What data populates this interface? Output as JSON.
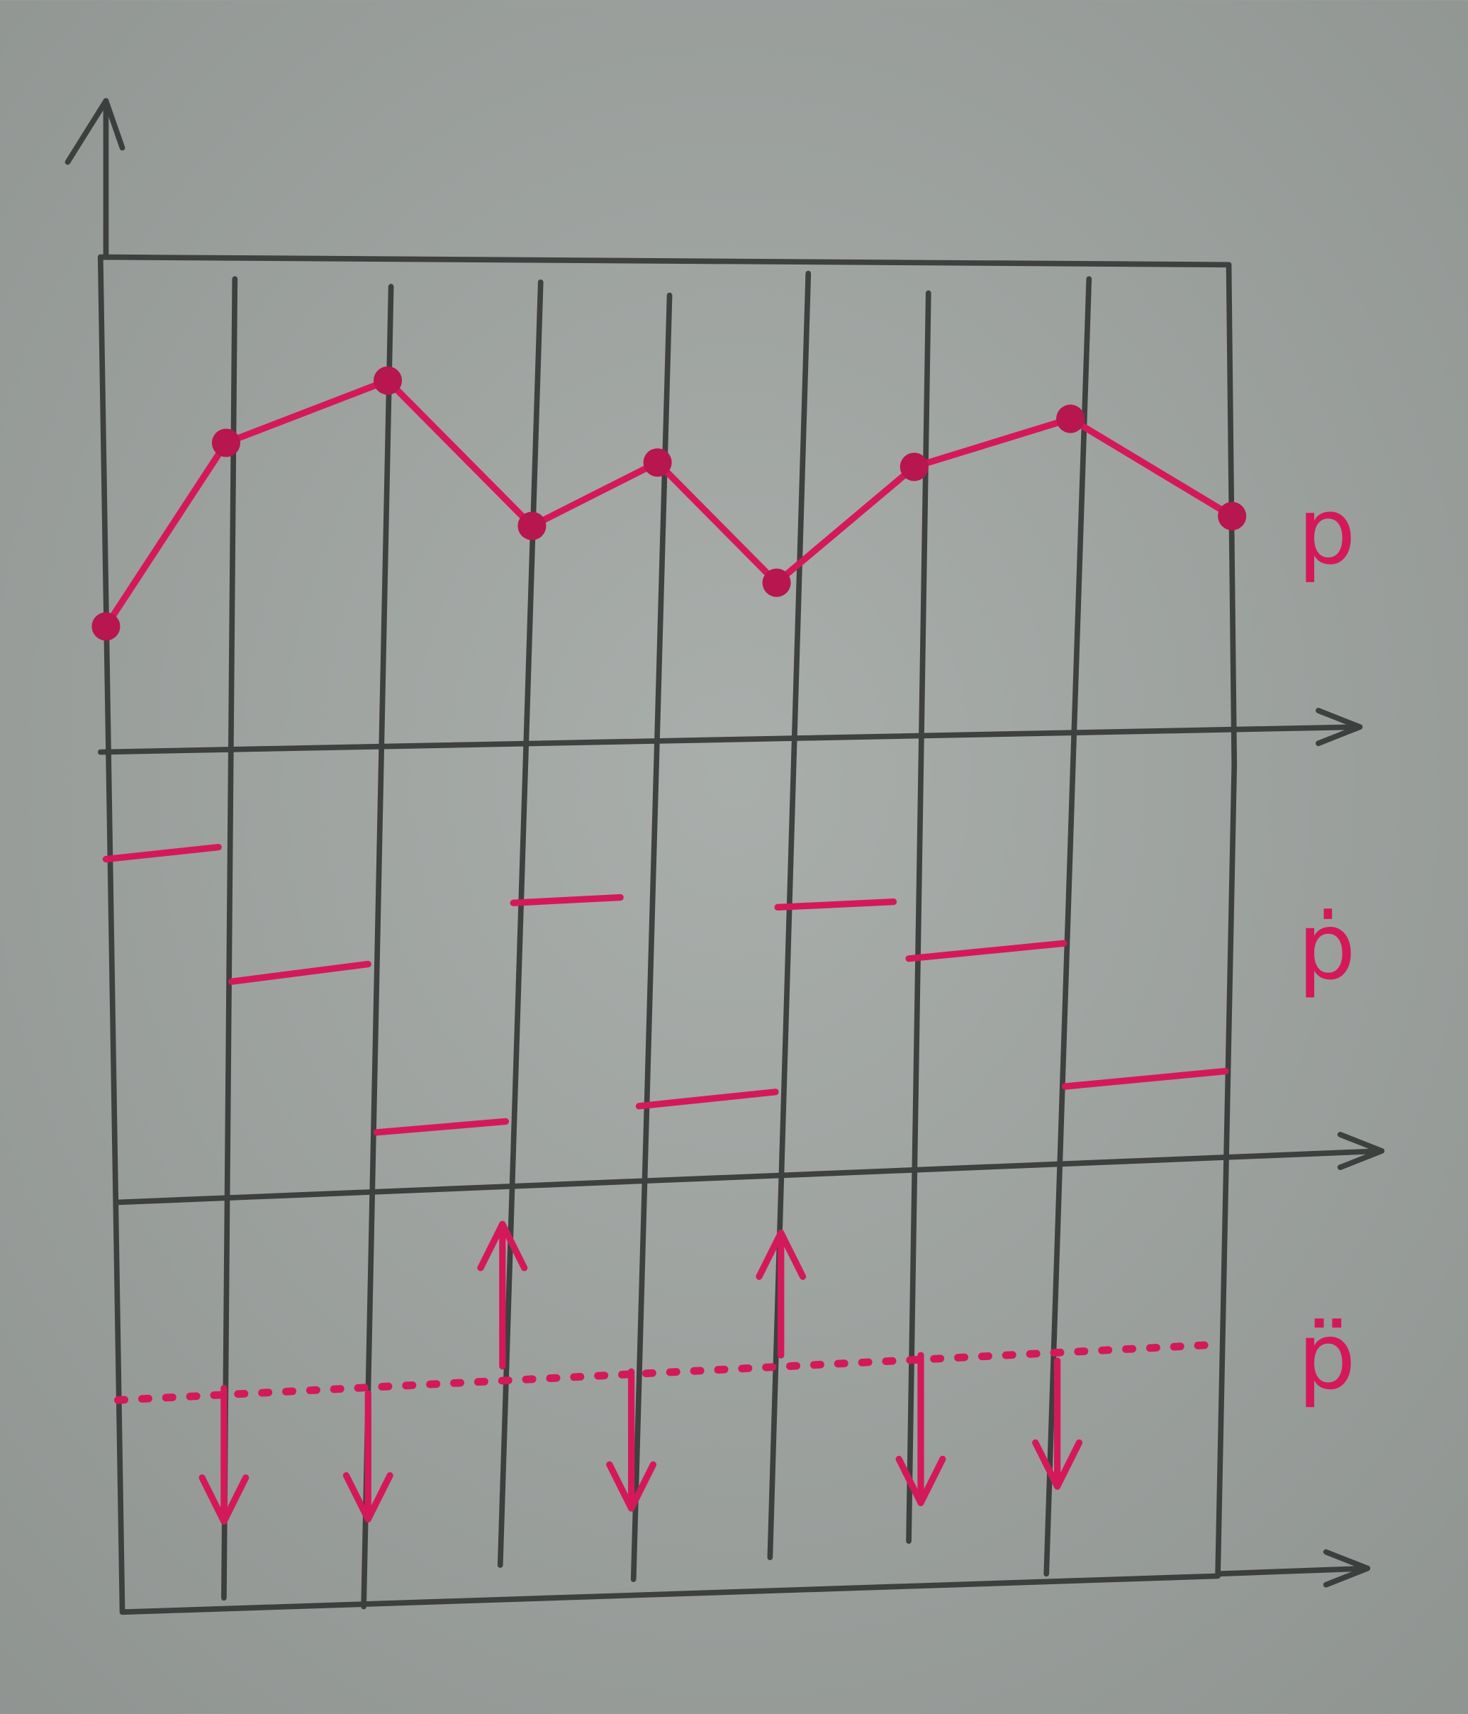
{
  "labels": {
    "position": "p",
    "velocity": "ṗ",
    "acceleration": "p̈"
  }
}
